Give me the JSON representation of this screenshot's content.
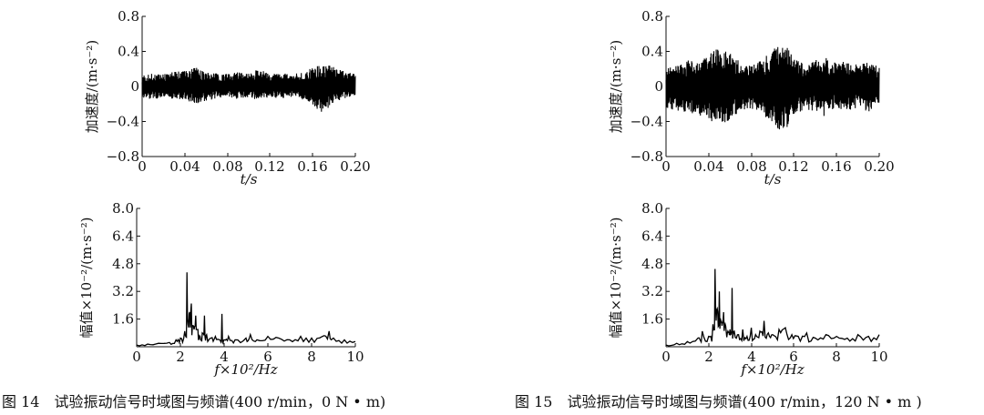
{
  "figures": [
    {
      "caption": "图 14　试验振动信号时域图与频谱(400 r/min，0 N • m)"
    },
    {
      "caption": "图 15　试验振动信号时域图与频谱(400 r/min，120 N • m )"
    }
  ],
  "chart_data": [
    {
      "id": "fig14-time",
      "type": "line",
      "xlabel": "t/s",
      "ylabel": "加速度/(m·s⁻²)",
      "xlim": [
        0,
        0.2
      ],
      "ylim": [
        -0.8,
        0.8
      ],
      "xticks": [
        "0",
        "0.04",
        "0.08",
        "0.12",
        "0.16",
        "0.20"
      ],
      "yticks": [
        "−0.8",
        "−0.4",
        "0",
        "0.4",
        "0.8"
      ],
      "series": [
        {
          "x": [
            0,
            0.01,
            0.02,
            0.03,
            0.04,
            0.05,
            0.06,
            0.07,
            0.08,
            0.09,
            0.1,
            0.11,
            0.12,
            0.13,
            0.14,
            0.15,
            0.16,
            0.17,
            0.18,
            0.19,
            0.2
          ],
          "upper": [
            0.13,
            0.15,
            0.14,
            0.17,
            0.18,
            0.22,
            0.16,
            0.15,
            0.14,
            0.17,
            0.15,
            0.2,
            0.14,
            0.16,
            0.13,
            0.17,
            0.22,
            0.26,
            0.22,
            0.17,
            0.14
          ],
          "lower": [
            -0.14,
            -0.15,
            -0.13,
            -0.16,
            -0.15,
            -0.2,
            -0.17,
            -0.14,
            -0.12,
            -0.15,
            -0.13,
            -0.17,
            -0.12,
            -0.14,
            -0.12,
            -0.15,
            -0.22,
            -0.32,
            -0.18,
            -0.14,
            -0.12
          ]
        }
      ]
    },
    {
      "id": "fig14-spectrum",
      "type": "line",
      "xlabel": "f×10²/Hz",
      "ylabel": "幅值×10⁻²/(m·s⁻²)",
      "xlim": [
        0,
        10
      ],
      "ylim": [
        0,
        8.0
      ],
      "xticks": [
        "0",
        "2",
        "4",
        "6",
        "8",
        "10"
      ],
      "yticks": [
        "8.0",
        "6.4",
        "4.8",
        "3.2",
        "1.6"
      ],
      "series": [
        {
          "x": [
            0,
            0.5,
            1.0,
            1.5,
            1.8,
            2.0,
            2.2,
            2.3,
            2.4,
            2.5,
            2.6,
            2.7,
            2.8,
            2.9,
            3.0,
            3.1,
            3.2,
            3.4,
            3.6,
            3.8,
            3.9,
            4.0,
            4.2,
            4.5,
            5.0,
            5.2,
            5.5,
            6.0,
            6.5,
            7.0,
            7.5,
            8.0,
            8.5,
            8.8,
            9.0,
            9.5,
            10.0
          ],
          "y": [
            0.1,
            0.15,
            0.2,
            0.25,
            0.4,
            0.5,
            0.9,
            4.3,
            1.9,
            2.5,
            1.2,
            1.8,
            1.0,
            0.6,
            0.8,
            1.8,
            0.7,
            0.5,
            0.6,
            0.4,
            1.9,
            0.4,
            0.6,
            0.4,
            0.5,
            0.7,
            0.4,
            0.6,
            0.5,
            0.4,
            0.6,
            0.5,
            0.6,
            0.9,
            0.5,
            0.4,
            0.3
          ]
        }
      ]
    },
    {
      "id": "fig15-time",
      "type": "line",
      "xlabel": "t/s",
      "ylabel": "加速度/(m·s⁻²)",
      "xlim": [
        0,
        0.2
      ],
      "ylim": [
        -0.8,
        0.8
      ],
      "xticks": [
        "0",
        "0.04",
        "0.08",
        "0.12",
        "0.16",
        "0.20"
      ],
      "yticks": [
        "−0.8",
        "−0.4",
        "0",
        "0.4",
        "0.8"
      ],
      "series": [
        {
          "x": [
            0,
            0.01,
            0.02,
            0.03,
            0.04,
            0.05,
            0.06,
            0.07,
            0.08,
            0.09,
            0.1,
            0.11,
            0.12,
            0.13,
            0.14,
            0.15,
            0.16,
            0.17,
            0.18,
            0.19,
            0.2
          ],
          "upper": [
            0.2,
            0.25,
            0.3,
            0.28,
            0.38,
            0.45,
            0.38,
            0.28,
            0.25,
            0.3,
            0.42,
            0.5,
            0.35,
            0.26,
            0.3,
            0.35,
            0.26,
            0.3,
            0.24,
            0.28,
            0.22
          ],
          "lower": [
            -0.25,
            -0.28,
            -0.3,
            -0.32,
            -0.38,
            -0.44,
            -0.38,
            -0.3,
            -0.26,
            -0.32,
            -0.42,
            -0.55,
            -0.38,
            -0.27,
            -0.28,
            -0.35,
            -0.24,
            -0.28,
            -0.24,
            -0.3,
            -0.2
          ]
        }
      ]
    },
    {
      "id": "fig15-spectrum",
      "type": "line",
      "xlabel": "f×10²/Hz",
      "ylabel": "幅值×10⁻²/(m·s⁻²)",
      "xlim": [
        0,
        10
      ],
      "ylim": [
        0,
        8.0
      ],
      "xticks": [
        "0",
        "2",
        "4",
        "6",
        "8",
        "10"
      ],
      "yticks": [
        "8.0",
        "6.4",
        "4.8",
        "3.2",
        "1.6"
      ],
      "series": [
        {
          "x": [
            0,
            0.5,
            1.0,
            1.5,
            1.7,
            2.0,
            2.2,
            2.3,
            2.4,
            2.5,
            2.6,
            2.7,
            2.8,
            2.9,
            3.0,
            3.1,
            3.2,
            3.4,
            3.6,
            3.8,
            4.0,
            4.2,
            4.4,
            4.6,
            4.8,
            5.0,
            5.3,
            5.6,
            5.9,
            6.2,
            6.6,
            7.0,
            7.5,
            8.0,
            8.5,
            9.0,
            9.5,
            10.0
          ],
          "y": [
            0.1,
            0.2,
            0.3,
            0.5,
            0.9,
            0.6,
            1.3,
            4.5,
            2.2,
            3.2,
            1.5,
            2.0,
            1.2,
            0.9,
            1.0,
            3.4,
            0.9,
            0.7,
            1.0,
            0.6,
            1.1,
            0.7,
            0.9,
            1.5,
            0.8,
            0.7,
            1.0,
            1.1,
            0.7,
            0.6,
            0.8,
            0.5,
            0.7,
            0.6,
            0.5,
            0.7,
            0.6,
            0.7
          ]
        }
      ]
    }
  ]
}
